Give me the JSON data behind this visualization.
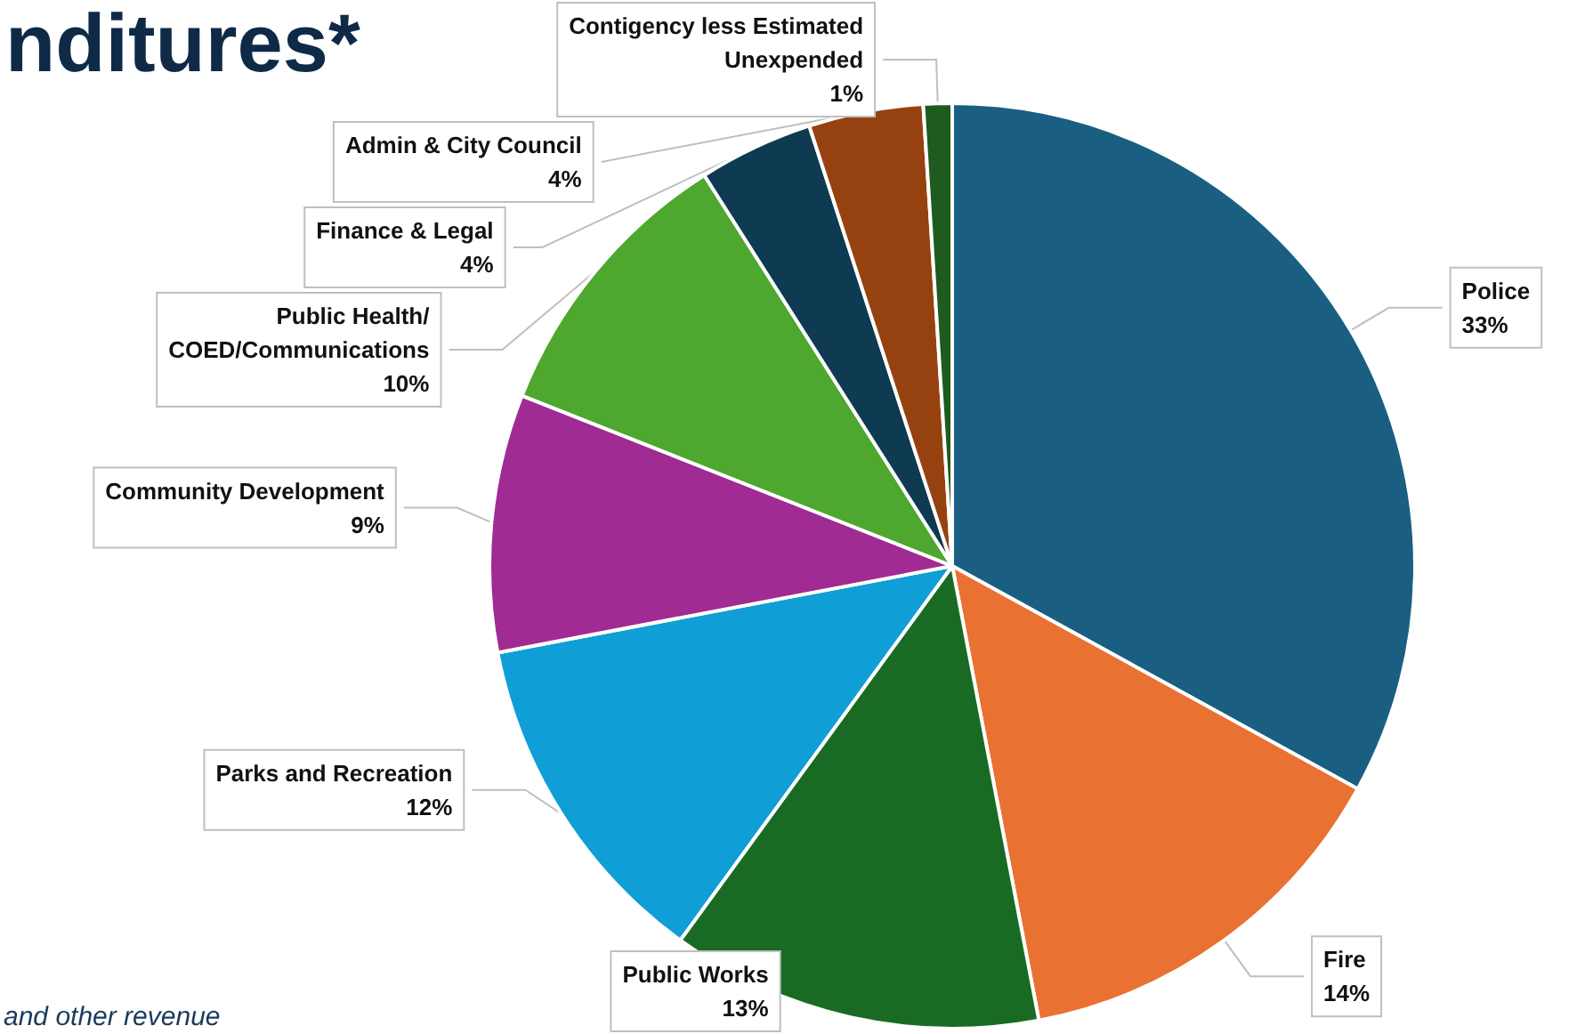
{
  "chart_data": {
    "type": "pie",
    "title": "nditures*",
    "annotations": [
      "and other revenue"
    ],
    "categories": [
      "Police",
      "Fire",
      "Public Works",
      "Parks and Recreation",
      "Community Development",
      "Public Health/\nCOED/Communications",
      "Finance & Legal",
      "Admin & City Council",
      "Contigency less Estimated\nUnexpended"
    ],
    "values": [
      33,
      14,
      13,
      12,
      9,
      10,
      4,
      4,
      1
    ],
    "value_labels": [
      "33%",
      "14%",
      "13%",
      "12%",
      "9%",
      "10%",
      "4%",
      "4%",
      "1%"
    ],
    "colors": [
      "#1a5f82",
      "#e97132",
      "#196b24",
      "#0f9ed5",
      "#a02b93",
      "#4ea72e",
      "#0e3a52",
      "#964210",
      "#1f5a1f"
    ],
    "legend": false
  }
}
